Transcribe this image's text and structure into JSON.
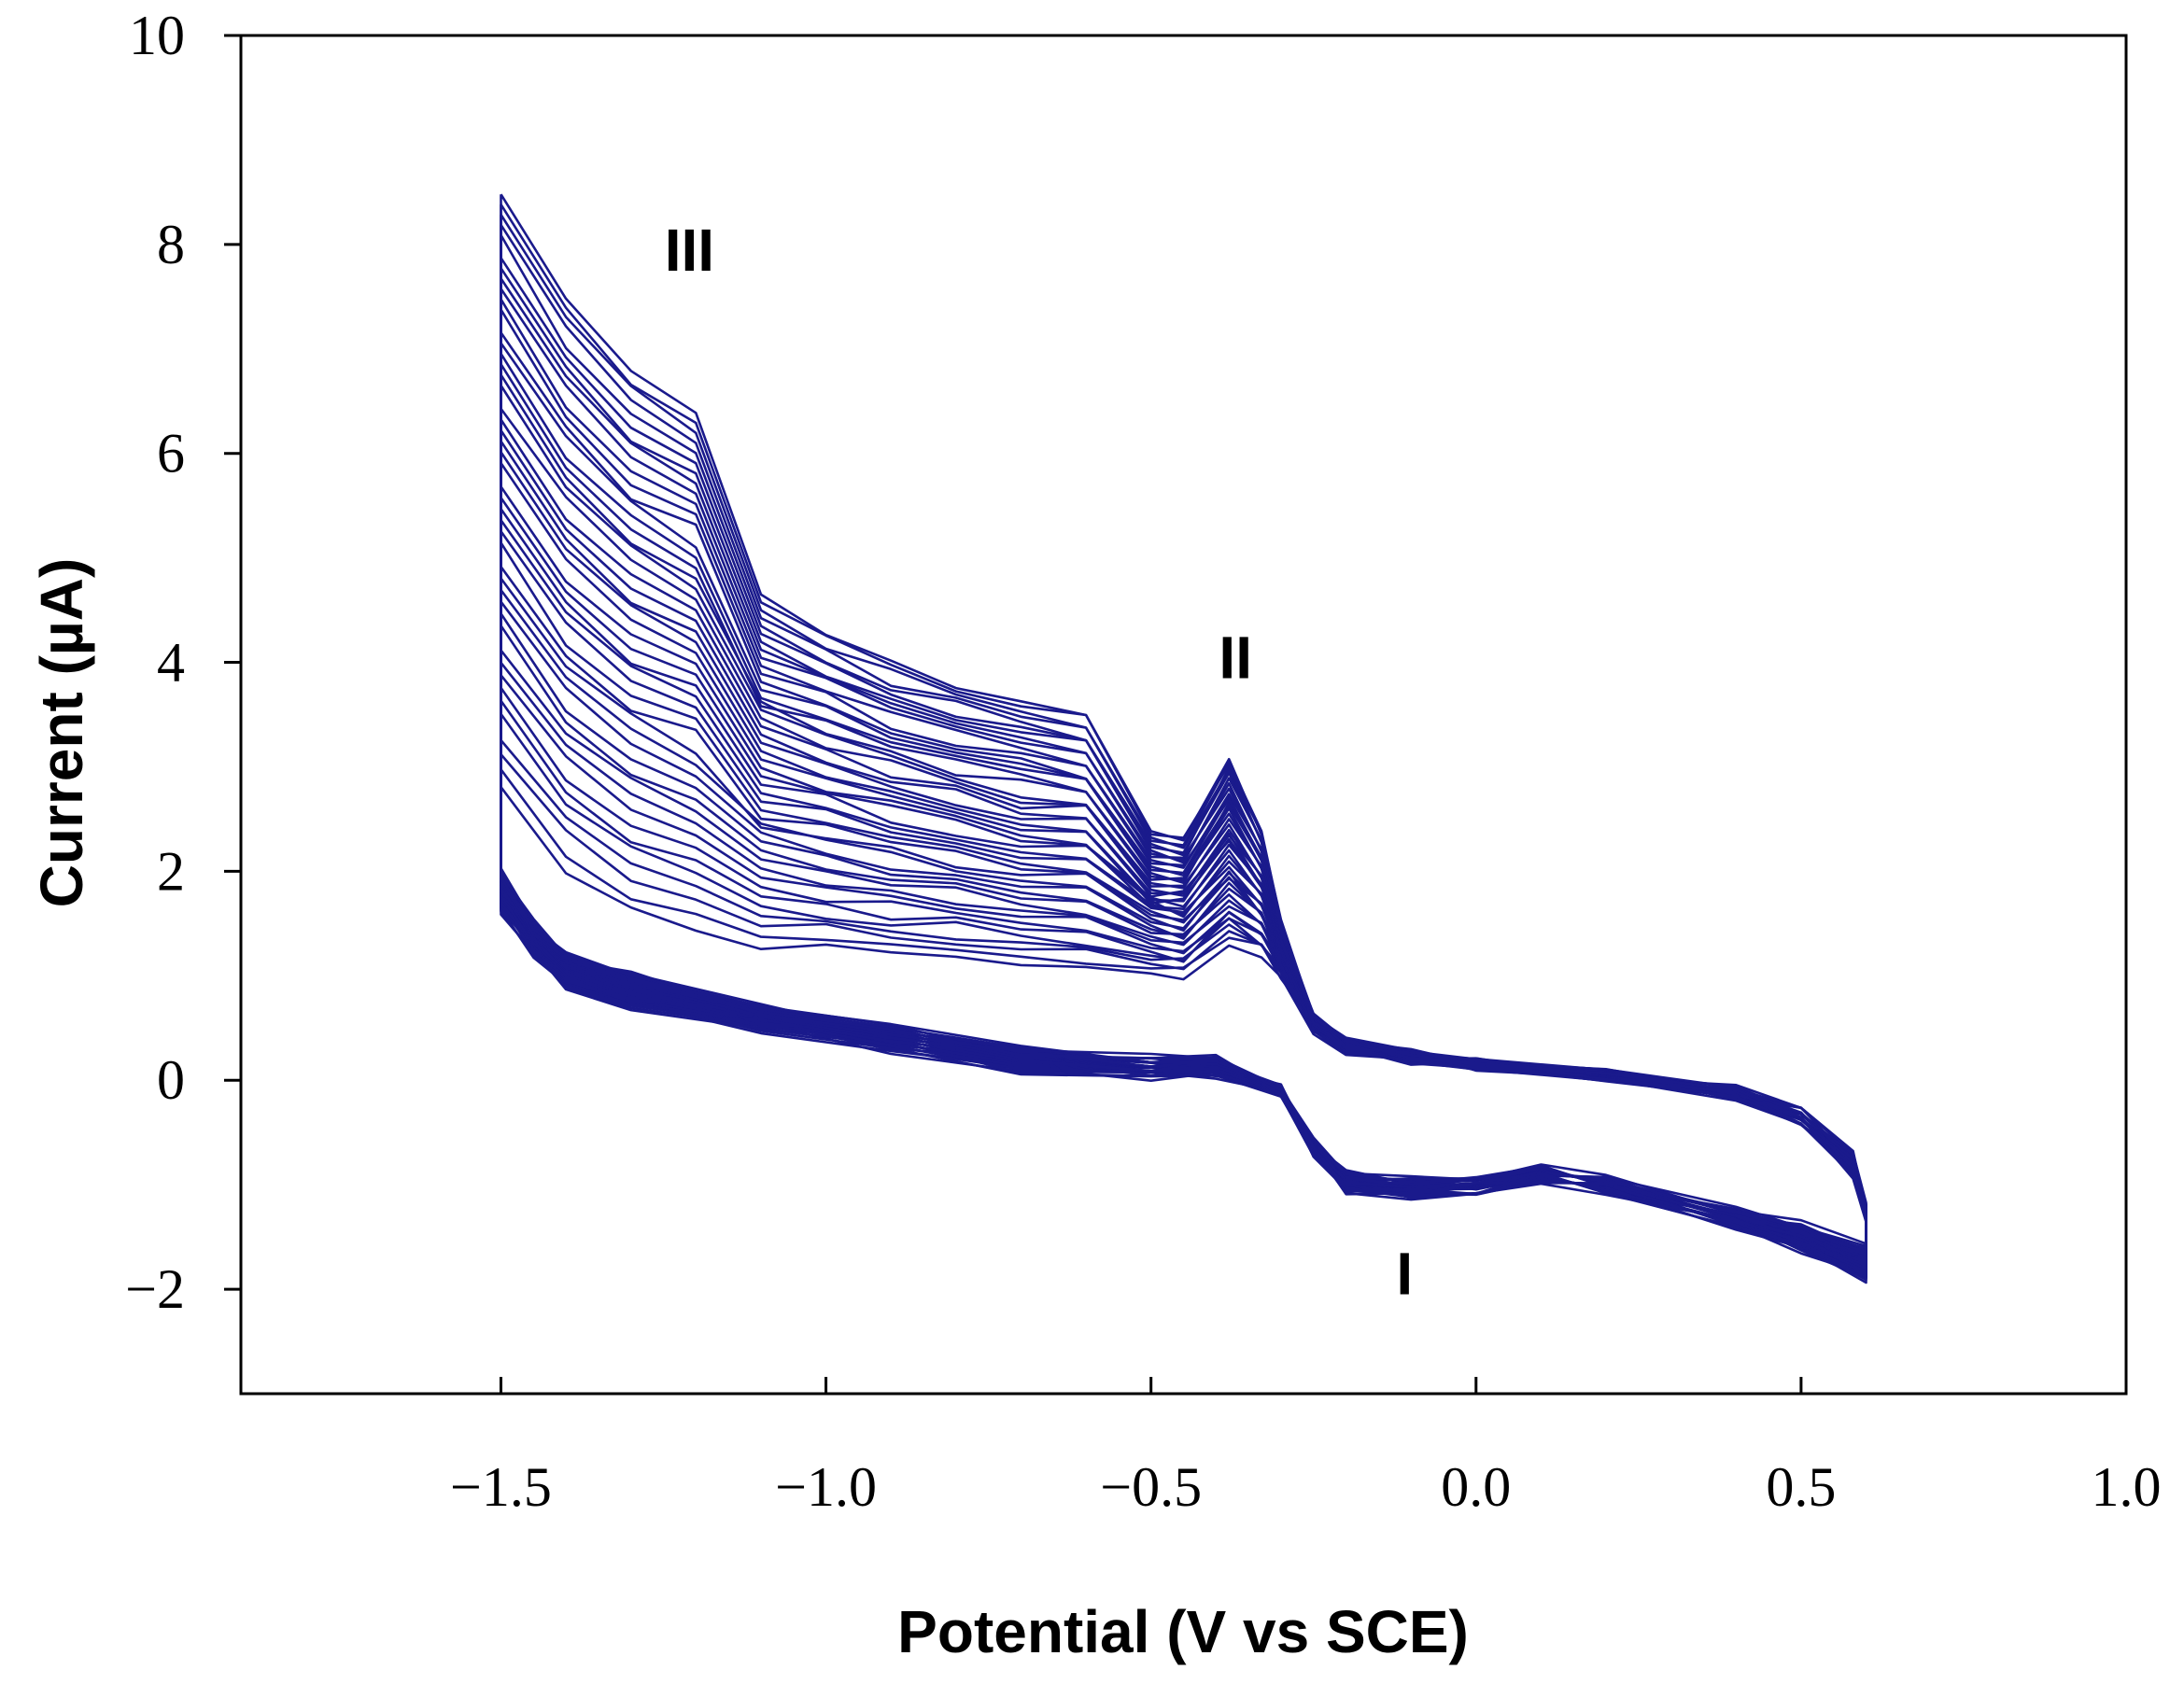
{
  "chart_data": {
    "type": "line",
    "title": "",
    "xlabel": "Potential (V vs SCE)",
    "ylabel": "Current (µA)",
    "xlim": [
      -1.9,
      1.0
    ],
    "ylim": [
      -3,
      10
    ],
    "xticks": [
      -1.5,
      -1.0,
      -0.5,
      0.0,
      0.5,
      1.0
    ],
    "xtick_labels": [
      "−1.5",
      "−1.0",
      "−0.5",
      "0.0",
      "0.5",
      "1.0"
    ],
    "yticks": [
      -2,
      0,
      2,
      4,
      6,
      8,
      10
    ],
    "ytick_labels": [
      "−2",
      "0",
      "2",
      "4",
      "6",
      "8",
      "10"
    ],
    "grid": false,
    "legend": "none",
    "color": "#1a1a8c",
    "cycles": 45,
    "description_of_series": "Successive cyclic voltammograms between -1.5 V and 0.6 V; the upper branch current at -1.5 V ranges from about 2.8 to 8.5 uA and the peak II height near -0.38 V ranges from about 1.3 to 3.1 uA",
    "representative_cycles": [
      {
        "upper_branch": [
          [
            -1.5,
            8.5
          ],
          [
            -1.4,
            7.5
          ],
          [
            -1.3,
            6.8
          ],
          [
            -1.2,
            6.4
          ],
          [
            -1.1,
            4.6
          ],
          [
            -1.0,
            4.3
          ],
          [
            -0.9,
            4.0
          ],
          [
            -0.8,
            3.8
          ],
          [
            -0.7,
            3.6
          ],
          [
            -0.6,
            3.5
          ],
          [
            -0.5,
            2.4
          ],
          [
            -0.45,
            2.3
          ],
          [
            -0.38,
            3.1
          ],
          [
            -0.33,
            2.4
          ],
          [
            -0.3,
            1.5
          ],
          [
            -0.25,
            0.6
          ],
          [
            -0.2,
            0.35
          ],
          [
            -0.1,
            0.25
          ],
          [
            0.0,
            0.15
          ],
          [
            0.2,
            0.05
          ],
          [
            0.4,
            -0.15
          ],
          [
            0.5,
            -0.4
          ],
          [
            0.58,
            -0.9
          ],
          [
            0.6,
            -1.3
          ]
        ],
        "lower_branch": [
          [
            0.6,
            -1.9
          ],
          [
            0.5,
            -1.6
          ],
          [
            0.4,
            -1.4
          ],
          [
            0.2,
            -1.05
          ],
          [
            0.1,
            -0.95
          ],
          [
            0.0,
            -1.05
          ],
          [
            -0.1,
            -1.1
          ],
          [
            -0.2,
            -1.05
          ],
          [
            -0.25,
            -0.7
          ],
          [
            -0.3,
            -0.1
          ],
          [
            -0.4,
            0.2
          ],
          [
            -0.5,
            0.2
          ],
          [
            -0.7,
            0.3
          ],
          [
            -0.9,
            0.5
          ],
          [
            -1.1,
            0.7
          ],
          [
            -1.3,
            1.0
          ],
          [
            -1.4,
            1.2
          ],
          [
            -1.45,
            1.5
          ],
          [
            -1.5,
            2.0
          ]
        ]
      },
      {
        "upper_branch": [
          [
            -1.5,
            2.8
          ],
          [
            -1.4,
            2.0
          ],
          [
            -1.3,
            1.6
          ],
          [
            -1.2,
            1.4
          ],
          [
            -1.1,
            1.3
          ],
          [
            -1.0,
            1.25
          ],
          [
            -0.9,
            1.2
          ],
          [
            -0.8,
            1.15
          ],
          [
            -0.7,
            1.1
          ],
          [
            -0.6,
            1.05
          ],
          [
            -0.5,
            1.0
          ],
          [
            -0.45,
            1.0
          ],
          [
            -0.38,
            1.3
          ],
          [
            -0.33,
            1.2
          ],
          [
            -0.3,
            1.0
          ],
          [
            -0.25,
            0.5
          ],
          [
            -0.2,
            0.3
          ],
          [
            -0.1,
            0.2
          ],
          [
            0.0,
            0.15
          ],
          [
            0.2,
            0.05
          ],
          [
            0.4,
            -0.1
          ],
          [
            0.5,
            -0.3
          ],
          [
            0.58,
            -0.7
          ],
          [
            0.6,
            -1.2
          ]
        ],
        "lower_branch": [
          [
            0.6,
            -1.6
          ],
          [
            0.5,
            -1.4
          ],
          [
            0.4,
            -1.25
          ],
          [
            0.2,
            -0.95
          ],
          [
            0.1,
            -0.85
          ],
          [
            0.0,
            -0.95
          ],
          [
            -0.1,
            -0.95
          ],
          [
            -0.2,
            -0.9
          ],
          [
            -0.25,
            -0.6
          ],
          [
            -0.3,
            -0.1
          ],
          [
            -0.4,
            0.05
          ],
          [
            -0.5,
            0.05
          ],
          [
            -0.7,
            0.1
          ],
          [
            -0.9,
            0.3
          ],
          [
            -1.1,
            0.5
          ],
          [
            -1.3,
            0.7
          ],
          [
            -1.4,
            0.9
          ],
          [
            -1.45,
            1.2
          ],
          [
            -1.5,
            1.6
          ]
        ]
      }
    ],
    "annotations": [
      {
        "text": "III",
        "x": -1.21,
        "y": 7.75
      },
      {
        "text": "II",
        "x": -0.37,
        "y": 3.85
      },
      {
        "text": "I",
        "x": -0.11,
        "y": -2.05
      }
    ]
  }
}
